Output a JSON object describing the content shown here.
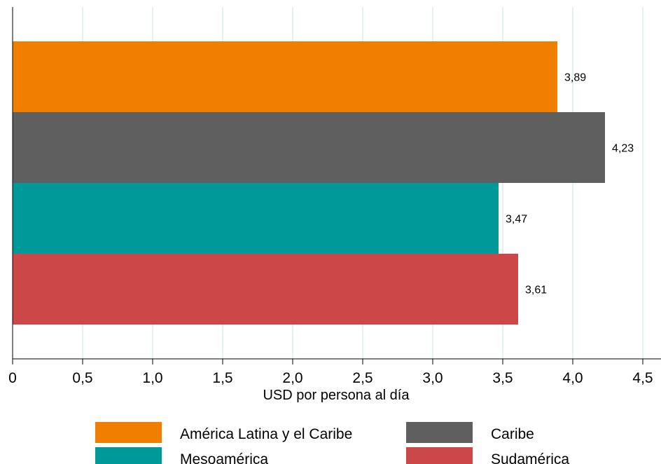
{
  "chart_data": {
    "type": "bar",
    "orientation": "horizontal",
    "categories": [
      "América Latina y el Caribe",
      "Caribe",
      "Mesoamérica",
      "Sudamérica"
    ],
    "values": [
      3.89,
      4.23,
      3.47,
      3.61
    ],
    "data_labels": [
      "3,89",
      "4,23",
      "3,47",
      "3,61"
    ],
    "colors": [
      "#f07f00",
      "#5f5f5f",
      "#009999",
      "#cc4848"
    ],
    "xlabel": "USD por persona al día",
    "xlim": [
      0,
      4.6
    ],
    "xticks": [
      0,
      0.5,
      1.0,
      1.5,
      2.0,
      2.5,
      3.0,
      3.5,
      4.0,
      4.5
    ],
    "xtick_labels": [
      "0",
      "0,5",
      "1,0",
      "1,5",
      "2,0",
      "2,5",
      "3,0",
      "3,5",
      "4,0",
      "4,5"
    ],
    "grid": "vertical",
    "legend_position": "bottom",
    "legend_columns": 2
  }
}
